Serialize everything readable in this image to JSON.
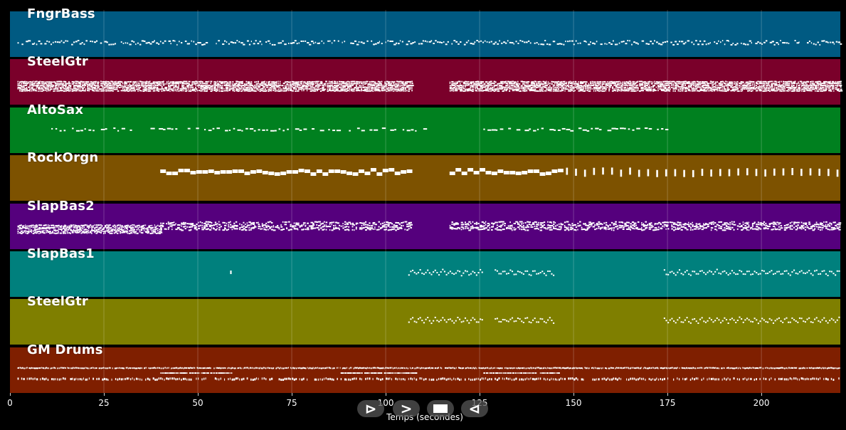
{
  "tracks": [
    {
      "name": "FngrBass",
      "color": "#005a82",
      "pattern": "bass"
    },
    {
      "name": "SteelGtr",
      "color": "#7a002a",
      "pattern": "guitar-dense"
    },
    {
      "name": "AltoSax",
      "color": "#00801f",
      "pattern": "sax"
    },
    {
      "name": "RockOrgn",
      "color": "#7d5200",
      "pattern": "organ"
    },
    {
      "name": "SlapBas2",
      "color": "#55007d",
      "pattern": "slap2"
    },
    {
      "name": "SlapBas1",
      "color": "#00807d",
      "pattern": "slap1"
    },
    {
      "name": "SteelGtr",
      "color": "#7f7f00",
      "pattern": "steel2"
    },
    {
      "name": "GM Drums",
      "color": "#7f1f00",
      "pattern": "drums"
    }
  ],
  "axis": {
    "title": "Temps (secondes)",
    "range": [
      0,
      221
    ],
    "ticks": [
      0,
      25,
      50,
      75,
      100,
      125,
      150,
      175,
      200
    ],
    "tick_labels": [
      "0",
      "25",
      "50",
      "75",
      "100",
      "125",
      "150",
      "175",
      "200"
    ]
  },
  "transport": {
    "play_icon": "play-icon",
    "forward_icon": "fast-forward-icon",
    "stop_icon": "stop-icon",
    "rewind_icon": "rewind-icon",
    "play_glyph": "⊳",
    "forward_glyph": ">",
    "rewind_glyph": "⊲"
  }
}
